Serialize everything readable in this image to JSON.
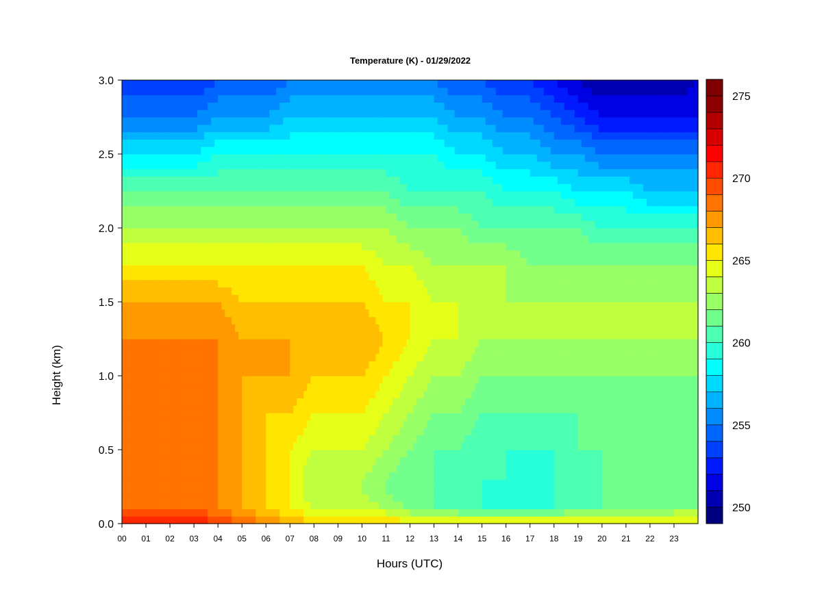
{
  "chart_data": {
    "type": "heatmap",
    "title": "Temperature (K) - 01/29/2022",
    "xlabel": "Hours (UTC)",
    "ylabel": "Height (km)",
    "xlim": [
      0,
      24
    ],
    "ylim": [
      0.0,
      3.0
    ],
    "x_ticks": [
      "00",
      "01",
      "02",
      "03",
      "04",
      "05",
      "06",
      "07",
      "08",
      "09",
      "10",
      "11",
      "12",
      "13",
      "14",
      "15",
      "16",
      "17",
      "18",
      "19",
      "20",
      "21",
      "22",
      "23"
    ],
    "y_ticks": [
      "0.0",
      "0.5",
      "1.0",
      "1.5",
      "2.0",
      "2.5",
      "3.0"
    ],
    "grid": false,
    "colorbar": {
      "range": [
        249,
        276
      ],
      "tick_labels": [
        "250",
        "255",
        "260",
        "265",
        "270",
        "275"
      ],
      "colors": [
        "#00007f",
        "#0000b2",
        "#0000e5",
        "#0019ff",
        "#0040ff",
        "#0066ff",
        "#008cff",
        "#00b2ff",
        "#00d9ff",
        "#00ffff",
        "#26ffd9",
        "#4cffb2",
        "#73ff8c",
        "#99ff66",
        "#bfff40",
        "#e5ff19",
        "#ffe500",
        "#ffbf00",
        "#ff9900",
        "#ff7300",
        "#ff4c00",
        "#ff2600",
        "#ff0000",
        "#d90000",
        "#b20000",
        "#8c0000",
        "#7f0000"
      ]
    },
    "hours": [
      0,
      1,
      2,
      3,
      4,
      5,
      6,
      7,
      8,
      9,
      10,
      11,
      12,
      13,
      14,
      15,
      16,
      17,
      18,
      19,
      20,
      21,
      22,
      23,
      24
    ],
    "heights_km": [
      0.0,
      0.05,
      0.1,
      0.2,
      0.3,
      0.5,
      0.75,
      1.0,
      1.25,
      1.5,
      1.75,
      2.0,
      2.25,
      2.5,
      2.75,
      3.0
    ],
    "temperature_K": [
      [
        271,
        271,
        271,
        271,
        270,
        269,
        268,
        267,
        266,
        266,
        266,
        266,
        265,
        265,
        265,
        265,
        265,
        265,
        265,
        265,
        265,
        265,
        265,
        265,
        265
      ],
      [
        270,
        270,
        270,
        270,
        269,
        268,
        267,
        266,
        265,
        265,
        265,
        265,
        264,
        263,
        263,
        263,
        263,
        263,
        263,
        264,
        264,
        264,
        264,
        264,
        264
      ],
      [
        269,
        269,
        269,
        269,
        268,
        267,
        266,
        265,
        264,
        264,
        264,
        263,
        262,
        261,
        261,
        260,
        260,
        260,
        260,
        261,
        261,
        261,
        261,
        262,
        262
      ],
      [
        268,
        268,
        268,
        268,
        268,
        267,
        266,
        265,
        263,
        263,
        263,
        262,
        261,
        261,
        260,
        260,
        259,
        259,
        260,
        260,
        261,
        261,
        261,
        261,
        261
      ],
      [
        268,
        268,
        268,
        268,
        268,
        267,
        266,
        265,
        263,
        263,
        263,
        262,
        261,
        261,
        260,
        260,
        260,
        259,
        260,
        260,
        261,
        261,
        261,
        261,
        261
      ],
      [
        268,
        268,
        268,
        268,
        268,
        267,
        266,
        265,
        264,
        264,
        264,
        263,
        262,
        261,
        261,
        260,
        260,
        260,
        260,
        261,
        261,
        261,
        261,
        261,
        261
      ],
      [
        268,
        268,
        268,
        268,
        268,
        267,
        266,
        266,
        265,
        265,
        265,
        264,
        263,
        262,
        262,
        261,
        261,
        261,
        261,
        261,
        261,
        261,
        261,
        261,
        261
      ],
      [
        268,
        268,
        268,
        269,
        268,
        267,
        267,
        267,
        266,
        266,
        266,
        265,
        264,
        263,
        263,
        262,
        262,
        262,
        262,
        262,
        262,
        262,
        262,
        262,
        262
      ],
      [
        268,
        268,
        268,
        268,
        268,
        267,
        267,
        267,
        267,
        267,
        267,
        266,
        265,
        264,
        264,
        263,
        263,
        263,
        263,
        263,
        263,
        263,
        263,
        263,
        263
      ],
      [
        267,
        267,
        267,
        267,
        267,
        266,
        266,
        266,
        266,
        266,
        266,
        265,
        265,
        264,
        264,
        263,
        263,
        263,
        263,
        263,
        263,
        263,
        263,
        263,
        263
      ],
      [
        265,
        265,
        265,
        265,
        265,
        265,
        265,
        265,
        265,
        265,
        265,
        264,
        264,
        263,
        263,
        263,
        263,
        262,
        262,
        262,
        262,
        262,
        262,
        262,
        262
      ],
      [
        263,
        263,
        263,
        263,
        263,
        263,
        263,
        263,
        263,
        263,
        263,
        263,
        262,
        262,
        262,
        261,
        261,
        261,
        261,
        261,
        260,
        260,
        260,
        260,
        260
      ],
      [
        261,
        261,
        261,
        261,
        261,
        261,
        261,
        261,
        261,
        261,
        261,
        261,
        260,
        260,
        260,
        260,
        259,
        259,
        259,
        258,
        258,
        258,
        257,
        257,
        257
      ],
      [
        258,
        258,
        258,
        258,
        259,
        259,
        259,
        259,
        259,
        259,
        259,
        259,
        259,
        259,
        258,
        258,
        257,
        257,
        256,
        256,
        255,
        255,
        255,
        255,
        255
      ],
      [
        255,
        255,
        255,
        255,
        256,
        256,
        256,
        257,
        257,
        257,
        257,
        257,
        257,
        257,
        256,
        256,
        255,
        255,
        254,
        253,
        252,
        252,
        252,
        252,
        252
      ],
      [
        253,
        253,
        253,
        253,
        254,
        254,
        254,
        255,
        255,
        255,
        255,
        255,
        255,
        255,
        254,
        254,
        253,
        253,
        252,
        251,
        250,
        250,
        250,
        250,
        251
      ]
    ]
  }
}
